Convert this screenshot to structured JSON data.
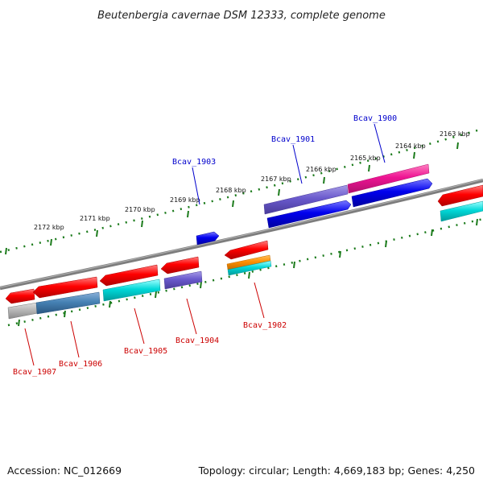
{
  "title": "Beutenbergia cavernae DSM 12333, complete genome",
  "footer": {
    "accession": "Accession: NC_012669",
    "topology": "Topology: circular; Length: 4,669,183 bp; Genes: 4,250"
  },
  "scale_labels": [
    "2172 kbp",
    "2171 kbp",
    "2170 kbp",
    "2169 kbp",
    "2168 kbp",
    "2167 kbp",
    "2166 kbp",
    "2165 kbp",
    "2164 kbp",
    "2163 kbp"
  ],
  "gene_labels": {
    "bcav_1900": "Bcav_1900",
    "bcav_1901": "Bcav_1901",
    "bcav_1902": "Bcav_1902",
    "bcav_1903": "Bcav_1903",
    "bcav_1904": "Bcav_1904",
    "bcav_1905": "Bcav_1905",
    "bcav_1906": "Bcav_1906",
    "bcav_1907": "Bcav_1907"
  },
  "colors": {
    "backbone": "#808080",
    "ticks": "#1a7a1a",
    "forward_label": "#0000cc",
    "reverse_label": "#cc0000"
  }
}
